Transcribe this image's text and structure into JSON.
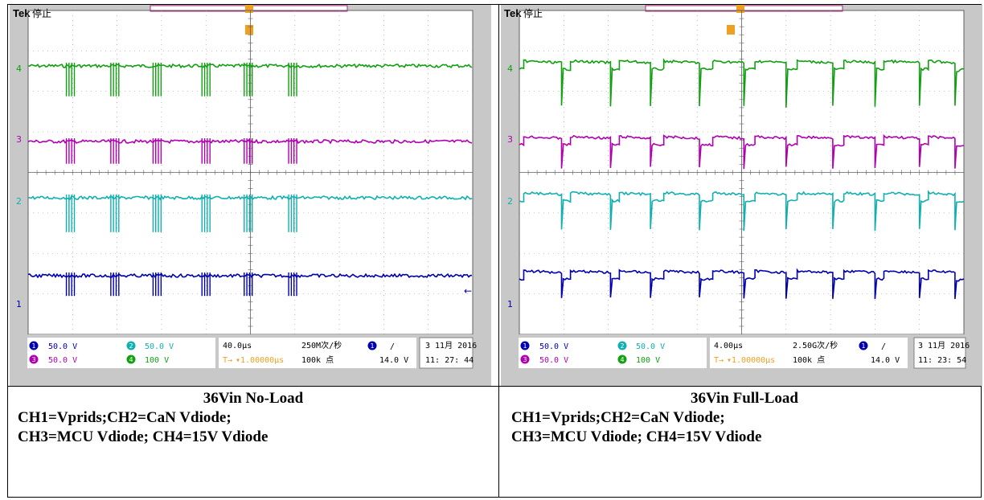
{
  "panels": [
    {
      "header": {
        "brand": "Tek",
        "status": "停止"
      },
      "channel_markers": [
        "4",
        "3",
        "2",
        "1"
      ],
      "readouts": {
        "ch1": {
          "num": "1",
          "volts": "50.0 V"
        },
        "ch2": {
          "num": "2",
          "volts": "50.0 V"
        },
        "ch3": {
          "num": "3",
          "volts": "50.0 V"
        },
        "ch4": {
          "num": "4",
          "volts": "100 V"
        },
        "timebase": "40.0μs",
        "trigger_delay": "▾1.00000μs",
        "sample_rate": "250M次/秒",
        "record_length": "100k 点",
        "trigger_source": "1",
        "trigger_slope": "/",
        "trigger_level": "14.0 V",
        "date": "3 11月  2016",
        "time": "11: 27: 44"
      },
      "caption": {
        "title": "36Vin No-Load",
        "line1": "CH1=Vprids;CH2=CaN Vdiode;",
        "line2": "CH3=MCU Vdiode; CH4=15V Vdiode"
      }
    },
    {
      "header": {
        "brand": "Tek",
        "status": "停止"
      },
      "channel_markers": [
        "4",
        "3",
        "2",
        "1"
      ],
      "readouts": {
        "ch1": {
          "num": "1",
          "volts": "50.0 V"
        },
        "ch2": {
          "num": "2",
          "volts": "50.0 V"
        },
        "ch3": {
          "num": "3",
          "volts": "50.0 V"
        },
        "ch4": {
          "num": "4",
          "volts": "100 V"
        },
        "timebase": "4.00μs",
        "trigger_delay": "▾1.00000μs",
        "sample_rate": "2.50G次/秒",
        "record_length": "100k 点",
        "trigger_source": "1",
        "trigger_slope": "/",
        "trigger_level": "14.0 V",
        "date": "3 11月  2016",
        "time": "11: 23: 54"
      },
      "caption": {
        "title": "36Vin Full-Load",
        "line1": "CH1=Vprids;CH2=CaN Vdiode;",
        "line2": "CH3=MCU Vdiode; CH4=15V Vdiode"
      }
    }
  ],
  "chart_data": [
    {
      "type": "line",
      "time_per_div_us": 40,
      "divisions": 10,
      "series": [
        {
          "channel": 4,
          "color": "#10a010",
          "mode": "burst",
          "burst_centers_div": [
            0.95,
            1.95,
            2.9,
            4.0,
            4.95,
            5.95
          ],
          "spikes_per_burst": 4,
          "spike_depth_div": 0.75
        },
        {
          "channel": 3,
          "color": "#b000b0",
          "mode": "burst",
          "burst_centers_div": [
            0.95,
            1.95,
            2.9,
            4.0,
            4.95,
            5.95
          ],
          "spikes_per_burst": 4,
          "spike_depth_div": 0.55
        },
        {
          "channel": 2,
          "color": "#10b0b0",
          "mode": "burst",
          "burst_centers_div": [
            0.95,
            1.95,
            2.9,
            4.0,
            4.95,
            5.95
          ],
          "spikes_per_burst": 4,
          "spike_depth_div": 0.85
        },
        {
          "channel": 1,
          "color": "#0000b0",
          "mode": "burst",
          "burst_centers_div": [
            0.95,
            1.95,
            2.9,
            4.0,
            4.95,
            5.95
          ],
          "spikes_per_burst": 4,
          "spike_depth_div": 0.5
        }
      ]
    },
    {
      "type": "line",
      "time_per_div_us": 4,
      "divisions": 10,
      "series": [
        {
          "channel": 4,
          "color": "#10a010",
          "mode": "pulse",
          "edges_div": [
            0.1,
            0.95,
            1.15,
            2.05,
            2.25,
            2.95,
            3.25,
            4.05,
            4.35,
            5.05,
            5.3,
            6.0,
            6.25,
            7.05,
            7.3,
            8.0,
            8.2,
            9.0,
            9.2,
            9.8
          ],
          "pulse_depth_div": 1.0
        },
        {
          "channel": 3,
          "color": "#b000b0",
          "mode": "pulse",
          "edges_div": [
            0.1,
            0.95,
            1.15,
            2.05,
            2.25,
            2.95,
            3.25,
            4.05,
            4.35,
            5.05,
            5.3,
            6.0,
            6.25,
            7.05,
            7.3,
            8.0,
            8.2,
            9.0,
            9.2,
            9.8
          ],
          "pulse_depth_div": 0.65
        },
        {
          "channel": 2,
          "color": "#10b0b0",
          "mode": "pulse",
          "edges_div": [
            0.1,
            0.95,
            1.15,
            2.05,
            2.25,
            2.95,
            3.25,
            4.05,
            4.35,
            5.05,
            5.3,
            6.0,
            6.25,
            7.05,
            7.3,
            8.0,
            8.2,
            9.0,
            9.2,
            9.8
          ],
          "pulse_depth_div": 0.8
        },
        {
          "channel": 1,
          "color": "#0000b0",
          "mode": "pulse",
          "edges_div": [
            0.1,
            0.95,
            1.15,
            2.05,
            2.25,
            2.95,
            3.25,
            4.05,
            4.35,
            5.05,
            5.3,
            6.0,
            6.25,
            7.05,
            7.3,
            8.0,
            8.2,
            9.0,
            9.2,
            9.8
          ],
          "pulse_depth_div": 0.55
        }
      ]
    }
  ]
}
